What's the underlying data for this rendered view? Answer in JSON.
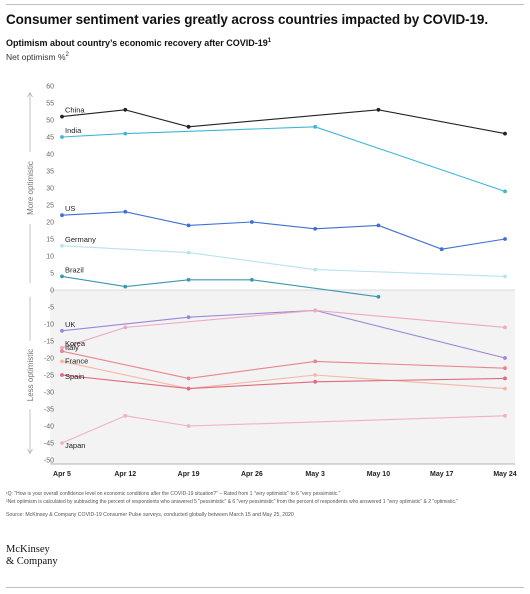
{
  "headline": "Consumer sentiment varies greatly across countries impacted by COVID-19.",
  "subtitle": "Optimism about country’s economic recovery after COVID-19",
  "subtitle_sup": "1",
  "unit": "Net optimism %",
  "unit_sup": "2",
  "notes": {
    "note1": "¹Q: \"How is your overall confidence level on economic conditions after the COVID-19 situation?\" – Rated from 1 \"very optimistic\" to 6 \"very pessimistic.\"",
    "note2": "²Net optimism is calculated by subtracting the percent of respondents who answered 5 \"pessimistic\" & 6 \"very pessimistic\" from the percent of respondents who answered 1 \"very optimistic\" & 2 \"optimistic.\"",
    "source": "Source: McKinsey & Company COVID-19 Consumer Pulse surveys, conducted globally between March 15 and May 25, 2020"
  },
  "logo": {
    "line1": "McKinsey",
    "line2": "& Company"
  },
  "chart_data": {
    "type": "line",
    "title": "Optimism about country’s economic recovery after COVID-19",
    "ylabel": "Net optimism %",
    "ylim": [
      -50,
      60
    ],
    "yticks": [
      60,
      55,
      50,
      45,
      40,
      35,
      30,
      25,
      20,
      15,
      10,
      5,
      0,
      -5,
      -10,
      -15,
      -20,
      -25,
      -30,
      -35,
      -40,
      -45,
      -50
    ],
    "categories": [
      "Apr 5",
      "Apr 12",
      "Apr 19",
      "Apr 26",
      "May 3",
      "May 10",
      "May 17",
      "May 24"
    ],
    "side_labels": {
      "upper": "More optimistic",
      "lower": "Less optimistic"
    },
    "shaded_region": "negative values",
    "series": [
      {
        "name": "China",
        "color": "#222222",
        "values": [
          51,
          53,
          48,
          null,
          null,
          53,
          null,
          46
        ]
      },
      {
        "name": "India",
        "color": "#3fb5dc",
        "values": [
          45,
          46,
          null,
          null,
          48,
          null,
          null,
          29
        ]
      },
      {
        "name": "US",
        "color": "#3f6fd6",
        "values": [
          22,
          23,
          19,
          20,
          18,
          19,
          12,
          15
        ]
      },
      {
        "name": "Germany",
        "color": "#b9e2ef",
        "values": [
          13,
          null,
          11,
          null,
          6,
          null,
          null,
          4
        ]
      },
      {
        "name": "Brazil",
        "color": "#3a98b0",
        "values": [
          4,
          1,
          3,
          3,
          null,
          -2,
          null,
          null
        ]
      },
      {
        "name": "UK",
        "color": "#9b86d9",
        "values": [
          -12,
          null,
          -8,
          null,
          -6,
          null,
          null,
          -20
        ]
      },
      {
        "name": "Korea",
        "color": "#f0a8c0",
        "values": [
          -17,
          -11,
          null,
          null,
          -6,
          null,
          null,
          -11
        ]
      },
      {
        "name": "Italy",
        "color": "#e8848f",
        "values": [
          -18,
          null,
          -26,
          null,
          -21,
          null,
          null,
          -23
        ]
      },
      {
        "name": "France",
        "color": "#f2b9a6",
        "values": [
          -21,
          null,
          -29,
          null,
          -25,
          null,
          null,
          -29
        ]
      },
      {
        "name": "Spain",
        "color": "#e06a7e",
        "values": [
          -25,
          null,
          -29,
          null,
          -27,
          null,
          null,
          -26
        ]
      },
      {
        "name": "Japan",
        "color": "#f0b0c6",
        "values": [
          -45,
          -37,
          -40,
          null,
          null,
          null,
          null,
          -37
        ]
      }
    ]
  }
}
